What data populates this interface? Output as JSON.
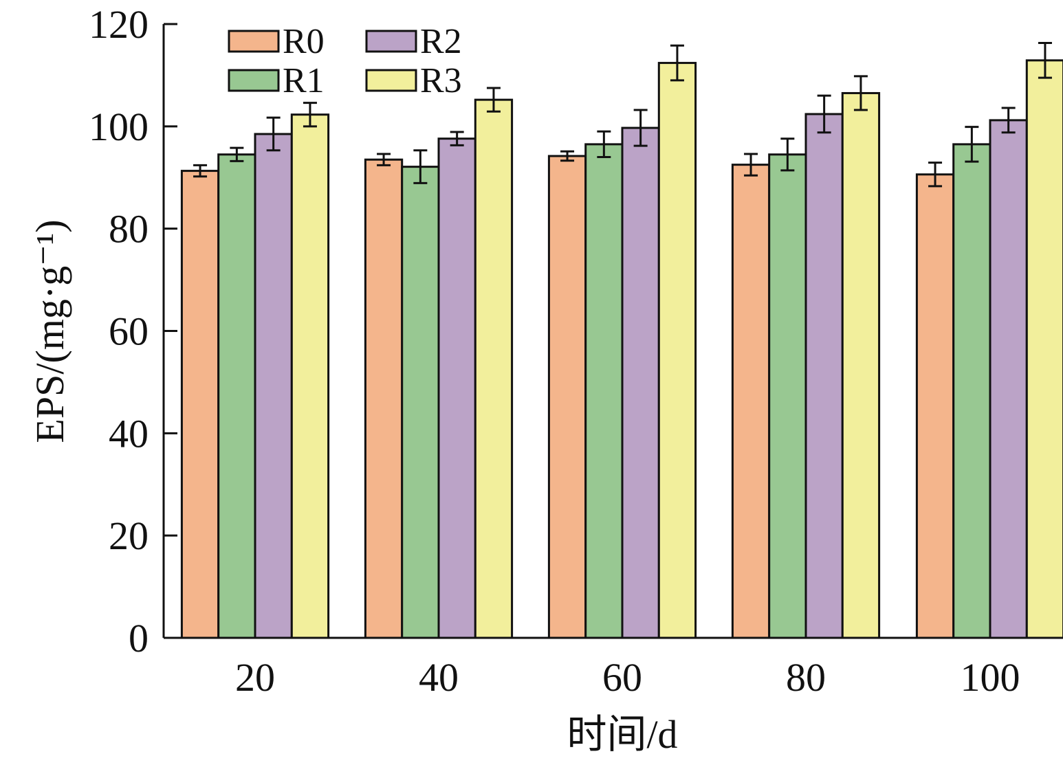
{
  "chart_data": {
    "type": "bar",
    "title": "",
    "xlabel": "时间/d",
    "ylabel": "EPS/(mg·g⁻¹)",
    "ylim": [
      0,
      120
    ],
    "yticks": [
      "0",
      "20",
      "40",
      "60",
      "80",
      "100",
      "120"
    ],
    "categories": [
      "20",
      "40",
      "60",
      "80",
      "100"
    ],
    "legend_position": "top-left",
    "series": [
      {
        "name": "R0",
        "color": "#F4B58C",
        "values": [
          91.3,
          93.5,
          94.2,
          92.5,
          90.6
        ],
        "errors": [
          1.1,
          1.1,
          0.9,
          2.1,
          2.3
        ]
      },
      {
        "name": "R1",
        "color": "#98C892",
        "values": [
          94.5,
          92.1,
          96.5,
          94.5,
          96.5
        ],
        "errors": [
          1.3,
          3.2,
          2.5,
          3.1,
          3.4
        ]
      },
      {
        "name": "R2",
        "color": "#BBA3C7",
        "values": [
          98.5,
          97.6,
          99.7,
          102.4,
          101.2
        ],
        "errors": [
          3.2,
          1.3,
          3.5,
          3.6,
          2.4
        ]
      },
      {
        "name": "R3",
        "color": "#F2EF9C",
        "values": [
          102.3,
          105.2,
          112.4,
          106.5,
          112.9
        ],
        "errors": [
          2.3,
          2.3,
          3.4,
          3.3,
          3.4
        ]
      }
    ]
  }
}
